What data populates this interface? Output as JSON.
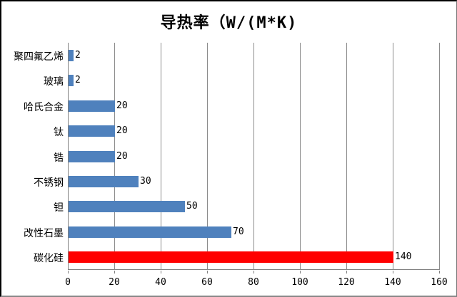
{
  "title": "导热率（W/(M*K)",
  "chart_data": {
    "type": "bar",
    "orientation": "horizontal",
    "title": "导热率（W/(M*K)",
    "categories": [
      "聚四氟乙烯",
      "玻璃",
      "哈氏合金",
      "钛",
      "锆",
      "不锈钢",
      "钽",
      "改性石墨",
      "碳化硅"
    ],
    "values": [
      2,
      2,
      20,
      20,
      20,
      30,
      50,
      70,
      140
    ],
    "value_labels": [
      "2",
      "2",
      "20",
      "20",
      "20",
      "30",
      "50",
      "70",
      "140"
    ],
    "bar_color_default": "#4F81BD",
    "bar_color_highlight": "#FF0000",
    "highlight_index": 8,
    "xlabel": "",
    "ylabel": "",
    "xlim": [
      0,
      160
    ],
    "x_ticks": [
      0,
      20,
      40,
      60,
      80,
      100,
      120,
      140,
      160
    ],
    "grid": true,
    "legend": "none",
    "grid_color": "#8c8c8c",
    "axis_color": "#808080"
  }
}
